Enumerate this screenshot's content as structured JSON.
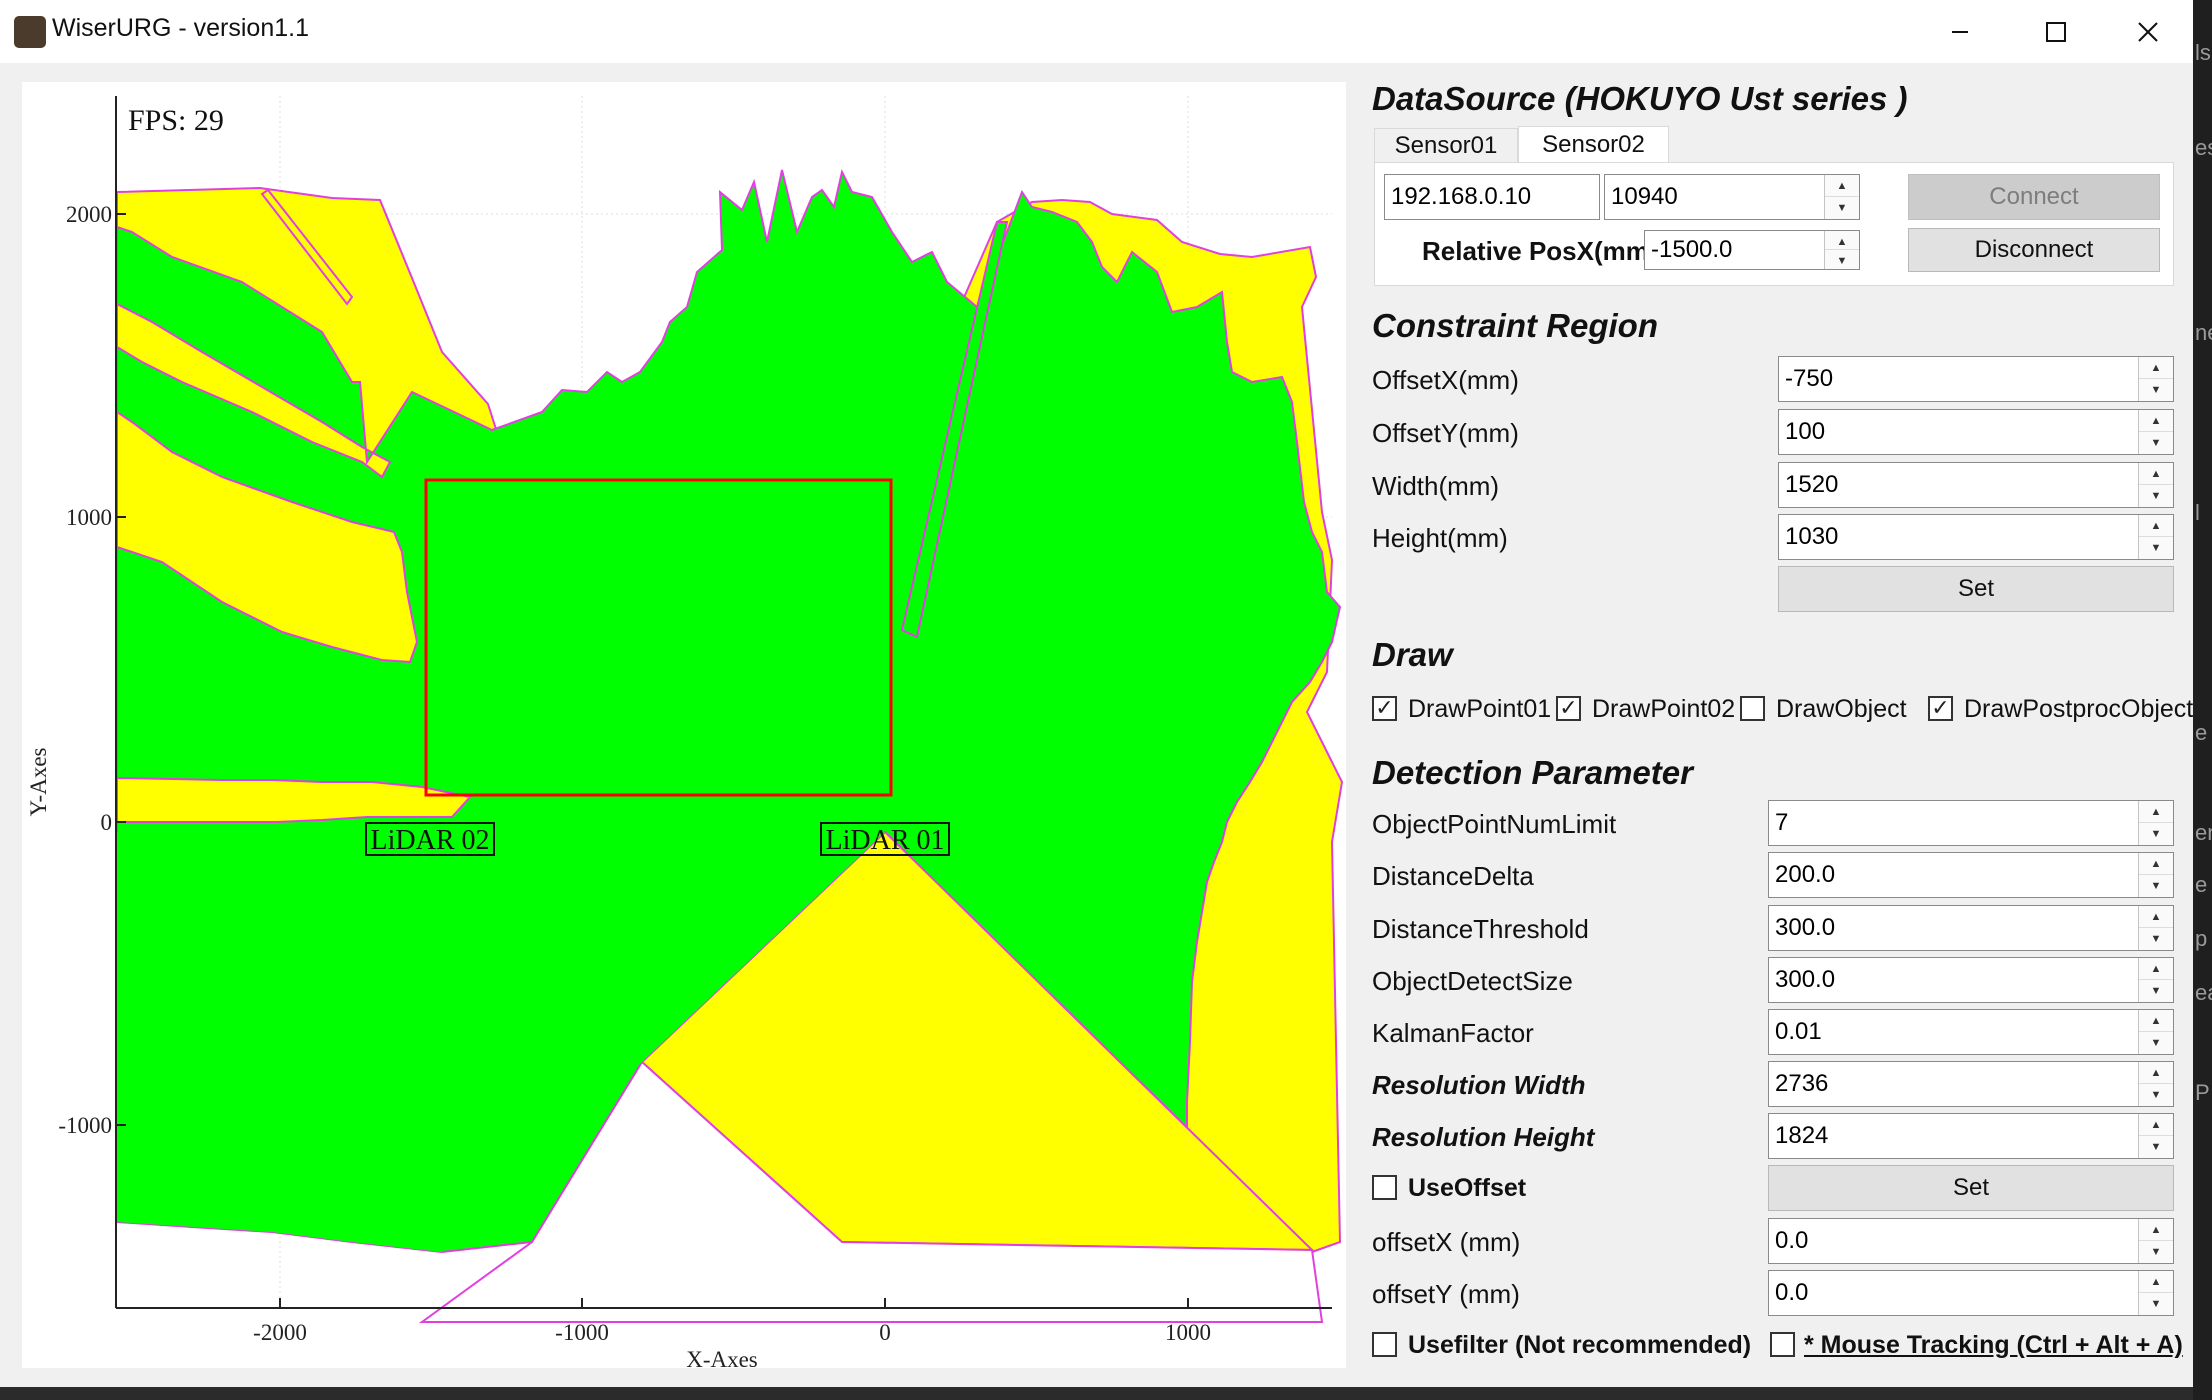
{
  "window": {
    "title": "WiserURG - version1.1",
    "min_glyph": "—",
    "max_glyph": "☐",
    "close_glyph": "✕"
  },
  "side_strip": [
    "ls",
    "es",
    "ne",
    "l",
    "e",
    "en",
    "e",
    "p",
    "ea",
    "P"
  ],
  "plot": {
    "fps_text": "FPS: 29",
    "xlabel": "X-Axes",
    "ylabel": "Y-Axes",
    "x_ticks": [
      "-2000",
      "-1000",
      "0",
      "1000"
    ],
    "y_ticks": [
      "2000",
      "1000",
      "0",
      "-1000"
    ],
    "lidar01_label": "LiDAR 01",
    "lidar02_label": "LiDAR 02",
    "colors": {
      "free_space": "#00ff00",
      "occluded": "#ffff00",
      "scan_line": "#e040e0",
      "region_rect": "#ff0000"
    }
  },
  "datasource": {
    "title": "DataSource (HOKUYO Ust series )",
    "tabs": [
      "Sensor01",
      "Sensor02"
    ],
    "active_tab": "Sensor02",
    "ip": "192.168.0.10",
    "port": "10940",
    "relpos_label": "Relative PosX(mm)",
    "relpos": "-1500.0",
    "connect_label": "Connect",
    "disconnect_label": "Disconnect"
  },
  "constraint": {
    "title": "Constraint Region",
    "rows": [
      {
        "label": "OffsetX(mm)",
        "value": "-750"
      },
      {
        "label": "OffsetY(mm)",
        "value": "100"
      },
      {
        "label": "Width(mm)",
        "value": "1520"
      },
      {
        "label": "Height(mm)",
        "value": "1030"
      }
    ],
    "set_label": "Set"
  },
  "draw": {
    "title": "Draw",
    "options": [
      {
        "label": "DrawPoint01",
        "checked": true
      },
      {
        "label": "DrawPoint02",
        "checked": true
      },
      {
        "label": "DrawObject",
        "checked": false
      },
      {
        "label": "DrawPostprocObject",
        "checked": true
      }
    ]
  },
  "detection": {
    "title": "Detection Parameter",
    "rows": [
      {
        "label": "ObjectPointNumLimit",
        "value": "7"
      },
      {
        "label": "DistanceDelta",
        "value": "200.0"
      },
      {
        "label": "DistanceThreshold",
        "value": "300.0"
      },
      {
        "label": "ObjectDetectSize",
        "value": "300.0"
      },
      {
        "label": "KalmanFactor",
        "value": "0.01"
      },
      {
        "label": "Resolution Width",
        "value": "2736"
      },
      {
        "label": "Resolution Height",
        "value": "1824"
      }
    ],
    "use_offset_label": "UseOffset",
    "set_label": "Set",
    "offset_rows": [
      {
        "label": "offsetX (mm)",
        "value": "0.0"
      },
      {
        "label": "offsetY (mm)",
        "value": "0.0"
      }
    ],
    "usefilter_label": "Usefilter (Not recommended)",
    "mouse_tracking_label": "* Mouse Tracking (Ctrl + Alt + A)"
  }
}
